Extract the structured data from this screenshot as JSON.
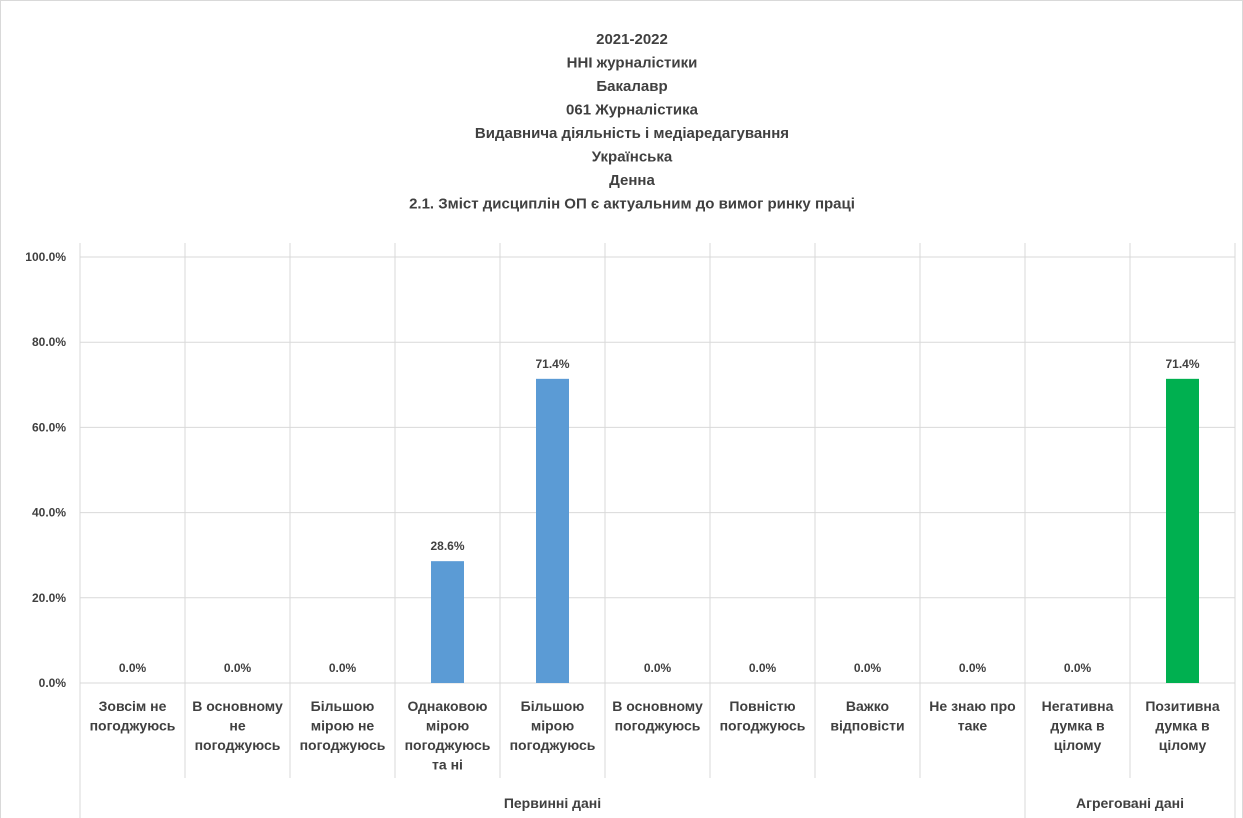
{
  "chart_data": {
    "type": "bar",
    "title_lines": [
      "2021-2022",
      "ННІ журналістики",
      "Бакалавр",
      "061 Журналістика",
      "Видавнича діяльність і медіаредагування",
      "Українська",
      "Денна",
      "2.1. Зміст дисциплін ОП є актуальним до вимог ринку праці"
    ],
    "categories": [
      [
        "Зовсім не",
        "погоджуюсь"
      ],
      [
        "В основному",
        "не",
        "погоджуюсь"
      ],
      [
        "Більшою",
        "мірою не",
        "погоджуюсь"
      ],
      [
        "Однаковою",
        "мірою",
        "погоджуюсь",
        "та ні"
      ],
      [
        "Більшою",
        "мірою",
        "погоджуюсь"
      ],
      [
        "В основному",
        "погоджуюсь"
      ],
      [
        "Повністю",
        "погоджуюсь"
      ],
      [
        "Важко",
        "відповісти"
      ],
      [
        "Не знаю про",
        "таке"
      ],
      [
        "Негативна",
        "думка в",
        "цілому"
      ],
      [
        "Позитивна",
        "думка в",
        "цілому"
      ]
    ],
    "values": [
      0.0,
      0.0,
      0.0,
      28.6,
      71.4,
      0.0,
      0.0,
      0.0,
      0.0,
      0.0,
      71.4
    ],
    "data_labels": [
      "0.0%",
      "0.0%",
      "0.0%",
      "28.6%",
      "71.4%",
      "0.0%",
      "0.0%",
      "0.0%",
      "0.0%",
      "0.0%",
      "71.4%"
    ],
    "bar_colors": [
      "#5b9bd5",
      "#5b9bd5",
      "#5b9bd5",
      "#5b9bd5",
      "#5b9bd5",
      "#5b9bd5",
      "#5b9bd5",
      "#5b9bd5",
      "#5b9bd5",
      "#5b9bd5",
      "#00b050"
    ],
    "groups": [
      {
        "label": "Первинні дані",
        "count": 9
      },
      {
        "label": "Агреговані дані",
        "count": 2
      }
    ],
    "yticks": [
      "0.0%",
      "20.0%",
      "40.0%",
      "60.0%",
      "80.0%",
      "100.0%"
    ],
    "ylim": [
      0,
      100
    ],
    "grid": true,
    "legend": "none"
  }
}
